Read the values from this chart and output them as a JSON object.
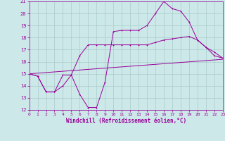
{
  "xlabel": "Windchill (Refroidissement éolien,°C)",
  "xlim": [
    0,
    23
  ],
  "ylim": [
    12,
    21
  ],
  "xticks": [
    0,
    1,
    2,
    3,
    4,
    5,
    6,
    7,
    8,
    9,
    10,
    11,
    12,
    13,
    14,
    15,
    16,
    17,
    18,
    19,
    20,
    21,
    22,
    23
  ],
  "yticks": [
    12,
    13,
    14,
    15,
    16,
    17,
    18,
    19,
    20,
    21
  ],
  "bg_color": "#cce8e8",
  "line_color": "#990099",
  "grid_color": "#aacccc",
  "line1_x": [
    0,
    1,
    2,
    3,
    4,
    5,
    6,
    7,
    8,
    9,
    10,
    11,
    12,
    13,
    14,
    15,
    16,
    17,
    18,
    19,
    20,
    21,
    22,
    23
  ],
  "line1_y": [
    15.0,
    14.8,
    13.5,
    13.5,
    14.9,
    14.9,
    13.3,
    12.2,
    12.2,
    14.3,
    18.5,
    18.6,
    18.6,
    18.6,
    19.0,
    20.0,
    21.0,
    20.4,
    20.2,
    19.3,
    17.8,
    17.2,
    16.5,
    16.3
  ],
  "line2_x": [
    0,
    1,
    2,
    3,
    4,
    5,
    6,
    7,
    8,
    9,
    10,
    11,
    12,
    13,
    14,
    15,
    16,
    17,
    18,
    19,
    20,
    21,
    22,
    23
  ],
  "line2_y": [
    15.0,
    14.8,
    13.5,
    13.5,
    14.0,
    14.9,
    16.5,
    17.4,
    17.4,
    17.4,
    17.4,
    17.4,
    17.4,
    17.4,
    17.4,
    17.6,
    17.8,
    17.9,
    18.0,
    18.1,
    17.8,
    17.2,
    16.8,
    16.3
  ],
  "line3_x": [
    0,
    23
  ],
  "line3_y": [
    15.0,
    16.2
  ]
}
